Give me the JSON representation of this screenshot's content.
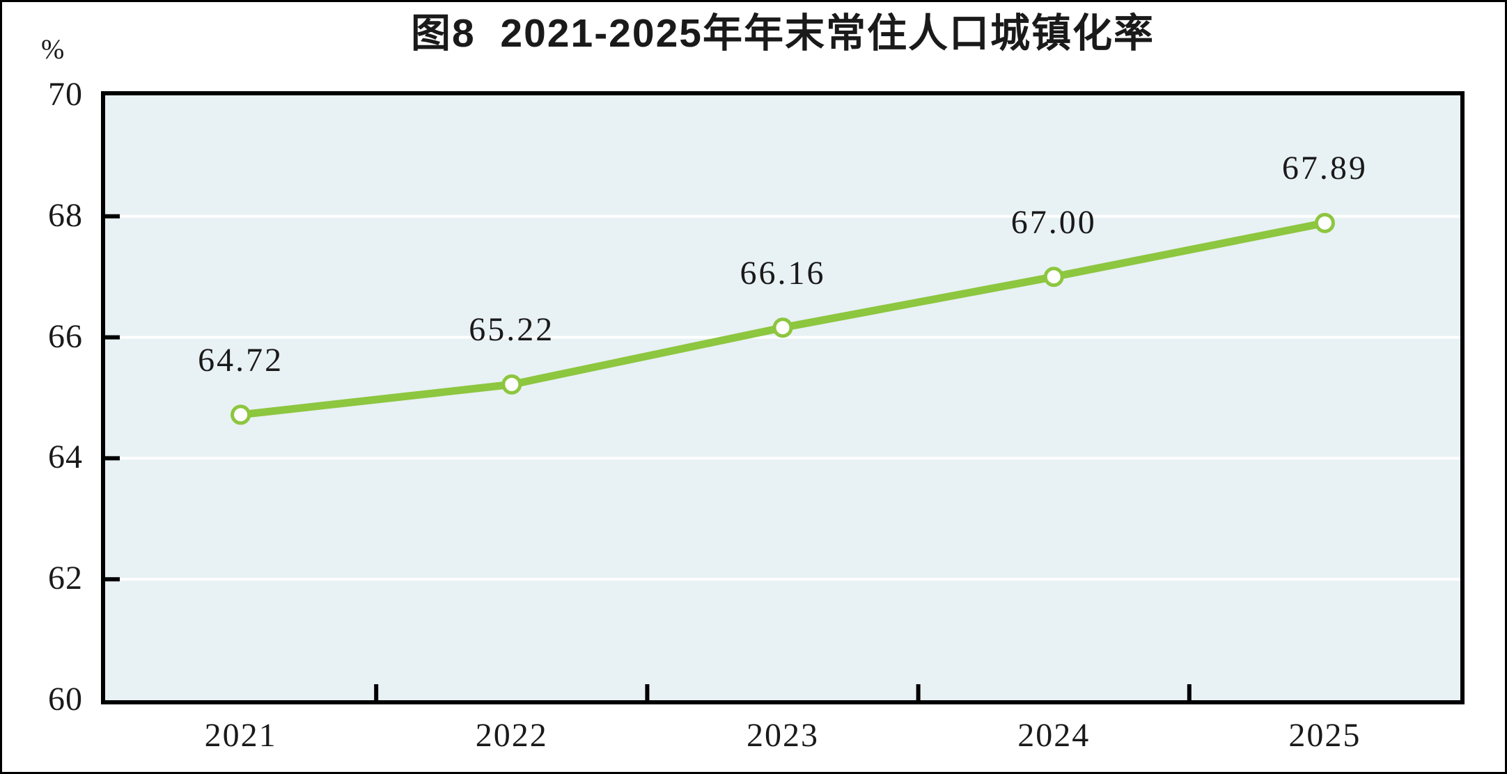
{
  "chart_data": {
    "type": "line",
    "title": "图8  2021-2025年年末常住人口城镇化率",
    "unit_label": "%",
    "categories": [
      "2021",
      "2022",
      "2023",
      "2024",
      "2025"
    ],
    "series": [
      {
        "name": "年末常住人口城镇化率",
        "values": [
          64.72,
          65.22,
          66.16,
          67.0,
          67.89
        ]
      }
    ],
    "data_labels": [
      "64.72",
      "65.22",
      "66.16",
      "67.00",
      "67.89"
    ],
    "ylim": [
      60,
      70
    ],
    "y_tick_values": [
      70,
      68,
      66,
      64,
      62,
      60
    ],
    "y_tick_labels": [
      "70",
      "68",
      "66",
      "64",
      "62",
      "60"
    ],
    "gridline_values": [
      68,
      66,
      64,
      62
    ],
    "legend_position": "none",
    "grid": "horizontal",
    "colors": {
      "line": "#8dc63f",
      "marker_fill": "#ffffff",
      "plot_background": "#e8f1f4",
      "grid_line": "#ffffff",
      "axis": "#000000",
      "text": "#1a1a1a"
    }
  }
}
